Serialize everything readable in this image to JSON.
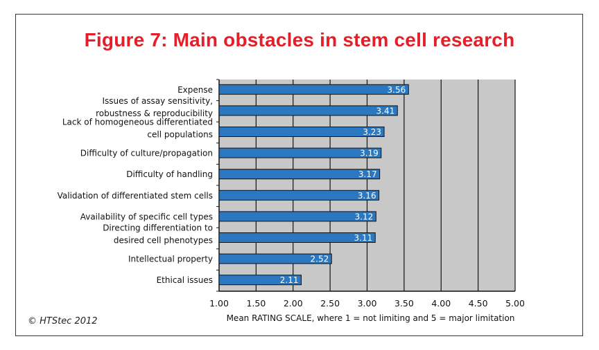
{
  "chart_data": {
    "type": "bar",
    "orientation": "horizontal",
    "title": "Figure 7: Main obstacles in stem cell research",
    "categories": [
      [
        "Expense"
      ],
      [
        "Issues of assay sensitivity,",
        "robustness & reproducibility"
      ],
      [
        "Lack of homogeneous differentiated",
        "cell populations"
      ],
      [
        "Difficulty of culture/propagation"
      ],
      [
        "Difficulty of handling"
      ],
      [
        "Validation of differentiated stem cells"
      ],
      [
        "Availability of specific cell types"
      ],
      [
        "Directing differentiation to",
        "desired cell phenotypes"
      ],
      [
        "Intellectual property"
      ],
      [
        "Ethical issues"
      ]
    ],
    "values": [
      3.56,
      3.41,
      3.23,
      3.19,
      3.17,
      3.16,
      3.12,
      3.11,
      2.52,
      2.11
    ],
    "value_labels": [
      "3.56",
      "3.41",
      "3.23",
      "3.19",
      "3.17",
      "3.16",
      "3.12",
      "3.11",
      "2.52",
      "2.11"
    ],
    "xlabel": "Mean RATING SCALE, where 1 = not limiting and 5 = major limitation",
    "xlim": [
      1,
      5
    ],
    "xticks": [
      "1.00",
      "1.50",
      "2.00",
      "2.50",
      "3.00",
      "3.50",
      "4.00",
      "4.50",
      "5.00"
    ],
    "grid": true,
    "legend": "none",
    "colors": {
      "bar": "#2b78c0",
      "plot_bg": "#c8c8c8",
      "title": "#e3202a"
    }
  },
  "copyright": "© HTStec 2012"
}
